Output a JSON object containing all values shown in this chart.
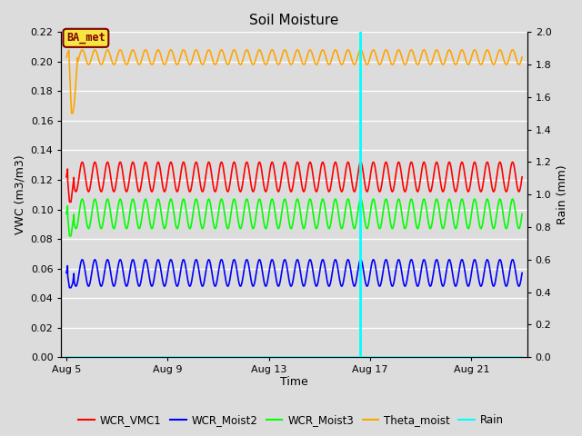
{
  "title": "Soil Moisture",
  "xlabel": "Time",
  "ylabel_left": "VWC (m3/m3)",
  "ylabel_right": "Rain (mm)",
  "ylim_left": [
    0.0,
    0.22
  ],
  "ylim_right": [
    0.0,
    2.0
  ],
  "yticks_left": [
    0.0,
    0.02,
    0.04,
    0.06,
    0.08,
    0.1,
    0.12,
    0.14,
    0.16,
    0.18,
    0.2,
    0.22
  ],
  "yticks_right": [
    0.0,
    0.2,
    0.4,
    0.6,
    0.8,
    1.0,
    1.2,
    1.4,
    1.6,
    1.8,
    2.0
  ],
  "x_start_day": 5,
  "x_end_day": 23,
  "xlim": [
    4.8,
    23.2
  ],
  "xtick_days": [
    5,
    9,
    13,
    17,
    21
  ],
  "xtick_labels": [
    "Aug 5",
    "Aug 9",
    "Aug 13",
    "Aug 17",
    "Aug 21"
  ],
  "vline_day": 16.6,
  "vline_color": "cyan",
  "background_color": "#dcdcdc",
  "plot_bg_color": "#dcdcdc",
  "grid_color": "white",
  "label_color": "#800000",
  "annotation_label": "BA_met",
  "annotation_day": 5.0,
  "annotation_facecolor": "#f5e642",
  "colors": {
    "WCR_VMC1": "red",
    "WCR_Moist2": "blue",
    "WCR_Moist3": "lime",
    "Theta_moist": "orange",
    "Rain": "cyan"
  },
  "legend_labels": [
    "WCR_VMC1",
    "WCR_Moist2",
    "WCR_Moist3",
    "Theta_moist",
    "Rain"
  ],
  "figsize": [
    6.4,
    4.8
  ],
  "dpi": 100
}
